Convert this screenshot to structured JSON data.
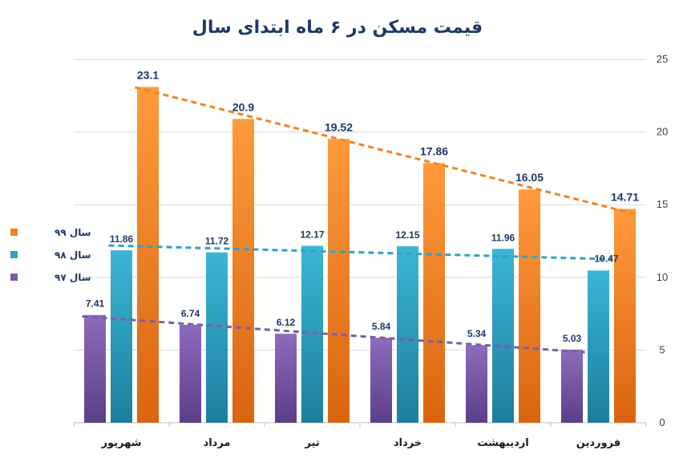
{
  "chart_data": {
    "type": "bar",
    "title": "قیمت مسکن در ۶ ماه ابتدای سال",
    "categories": [
      "فروردین",
      "اردیبهشت",
      "خرداد",
      "تیر",
      "مرداد",
      "شهریور"
    ],
    "x_axis_direction": "right-to-left",
    "series": [
      {
        "name": "سال ۹۷",
        "values": [
          5.03,
          5.34,
          5.84,
          6.12,
          6.74,
          7.41
        ],
        "color": "#7b5ca8",
        "trendline": true
      },
      {
        "name": "سال ۹۸",
        "values": [
          10.47,
          11.96,
          12.15,
          12.17,
          11.72,
          11.86
        ],
        "color": "#2ea3c3",
        "trendline": true
      },
      {
        "name": "سال ۹۹",
        "values": [
          14.71,
          16.05,
          17.86,
          19.52,
          20.9,
          23.1
        ],
        "color": "#f48220",
        "trendline": true
      }
    ],
    "y_ticks": [
      0,
      5,
      10,
      15,
      20,
      25
    ],
    "ylim": [
      0,
      25
    ],
    "y_axis_position": "right",
    "grid": true,
    "legend_position": "left",
    "legend_order": [
      "سال ۹۹",
      "سال ۹۸",
      "سال ۹۷"
    ]
  }
}
